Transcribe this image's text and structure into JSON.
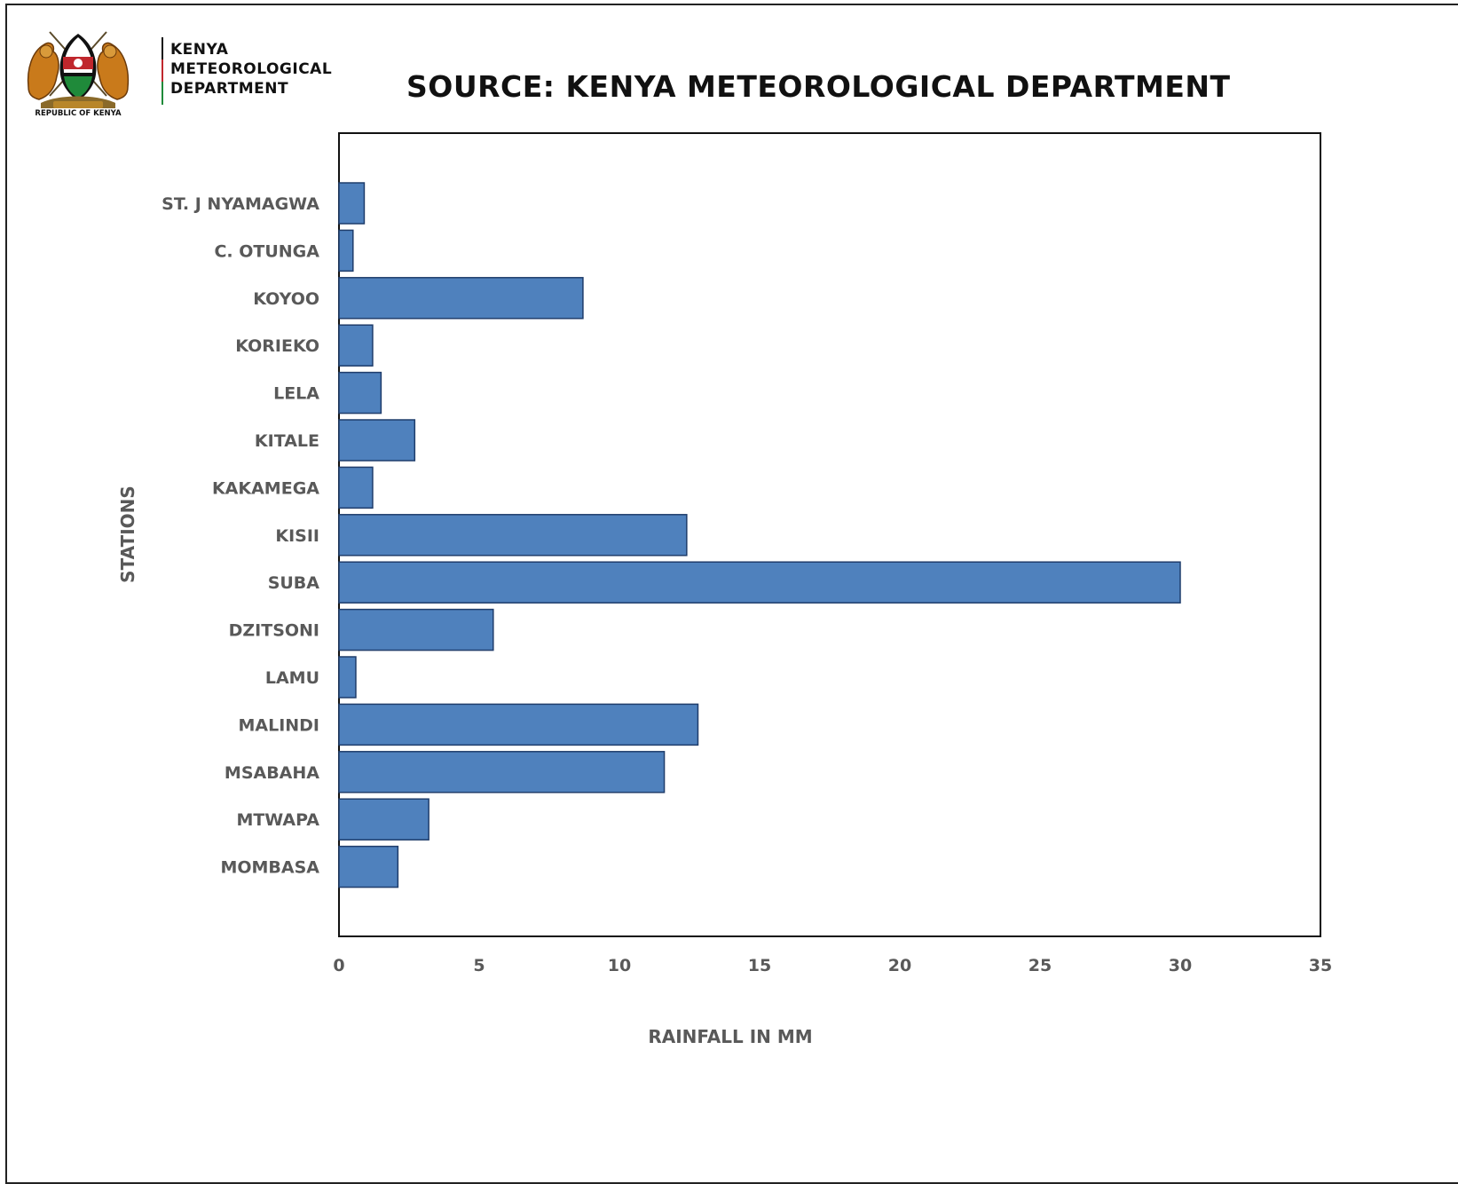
{
  "header": {
    "emblem_caption": "REPUBLIC OF KENYA",
    "dept_lines": [
      "KENYA",
      "METEOROLOGICAL",
      "DEPARTMENT"
    ],
    "source_title": "SOURCE: KENYA METEOROLOGICAL DEPARTMENT",
    "colors": {
      "bar1": "#111111",
      "bar2": "#c0272d",
      "bar3": "#1f8a3a"
    }
  },
  "chart_data": {
    "type": "bar",
    "orientation": "horizontal",
    "categories": [
      "ST. J NYAMAGWA",
      "C. OTUNGA",
      "KOYOO",
      "KORIEKO",
      "LELA",
      "KITALE",
      "KAKAMEGA",
      "KISII",
      "SUBA",
      "DZITSONI",
      "LAMU",
      "MALINDI",
      "MSABAHA",
      "MTWAPA",
      "MOMBASA"
    ],
    "values": [
      0.9,
      0.5,
      8.7,
      1.2,
      1.5,
      2.7,
      1.2,
      12.4,
      30.0,
      5.5,
      0.6,
      12.8,
      11.6,
      3.2,
      2.1
    ],
    "xlim": [
      0,
      35
    ],
    "xticks": [
      0,
      5,
      10,
      15,
      20,
      25,
      30,
      35
    ],
    "xlabel": "RAINFALL IN MM",
    "ylabel": "STATIONS",
    "grid": false,
    "legend": "none",
    "bar_color": "#4f81bd",
    "bar_edge_color": "#1f3d6b"
  }
}
